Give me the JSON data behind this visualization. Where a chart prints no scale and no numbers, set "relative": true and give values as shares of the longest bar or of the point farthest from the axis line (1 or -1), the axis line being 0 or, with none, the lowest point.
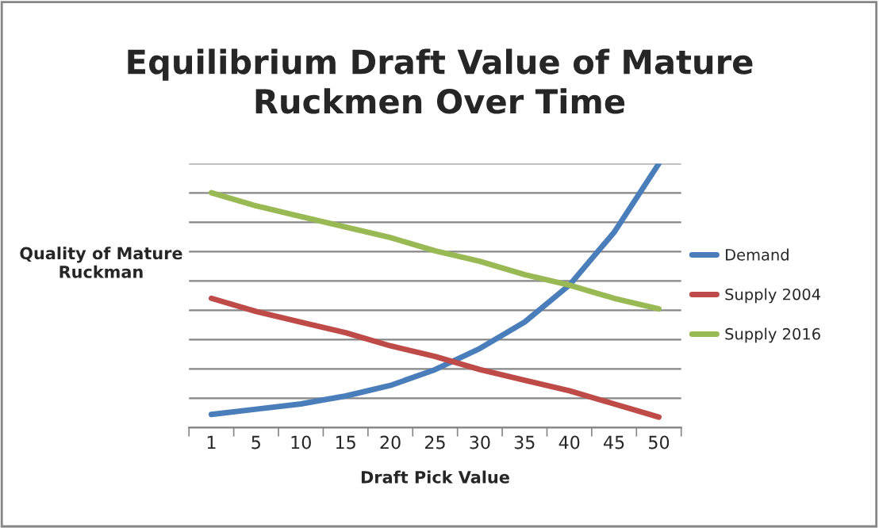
{
  "chart_data": {
    "type": "line",
    "title": "Equilibrium Draft Value of Mature\nRuckmen Over Time",
    "xlabel": "Draft Pick Value",
    "ylabel": "Quality of Mature\nRuckman",
    "categories": [
      "1",
      "5",
      "10",
      "15",
      "20",
      "25",
      "30",
      "35",
      "40",
      "45",
      "50"
    ],
    "relative": true,
    "grid": "y",
    "legend": "right",
    "marker": "none",
    "line_style": "solid",
    "series": [
      {
        "name": "Demand",
        "color": "#4a7ebb",
        "values": [
          0.05,
          0.07,
          0.09,
          0.12,
          0.16,
          0.22,
          0.3,
          0.4,
          0.54,
          0.74,
          1.0
        ]
      },
      {
        "name": "Supply 2004",
        "color": "#be4b48",
        "values": [
          0.49,
          0.44,
          0.4,
          0.36,
          0.31,
          0.27,
          0.22,
          0.18,
          0.14,
          0.09,
          0.04
        ]
      },
      {
        "name": "Supply 2016",
        "color": "#98b954",
        "values": [
          0.89,
          0.84,
          0.8,
          0.76,
          0.72,
          0.67,
          0.63,
          0.58,
          0.54,
          0.49,
          0.45
        ]
      }
    ]
  }
}
